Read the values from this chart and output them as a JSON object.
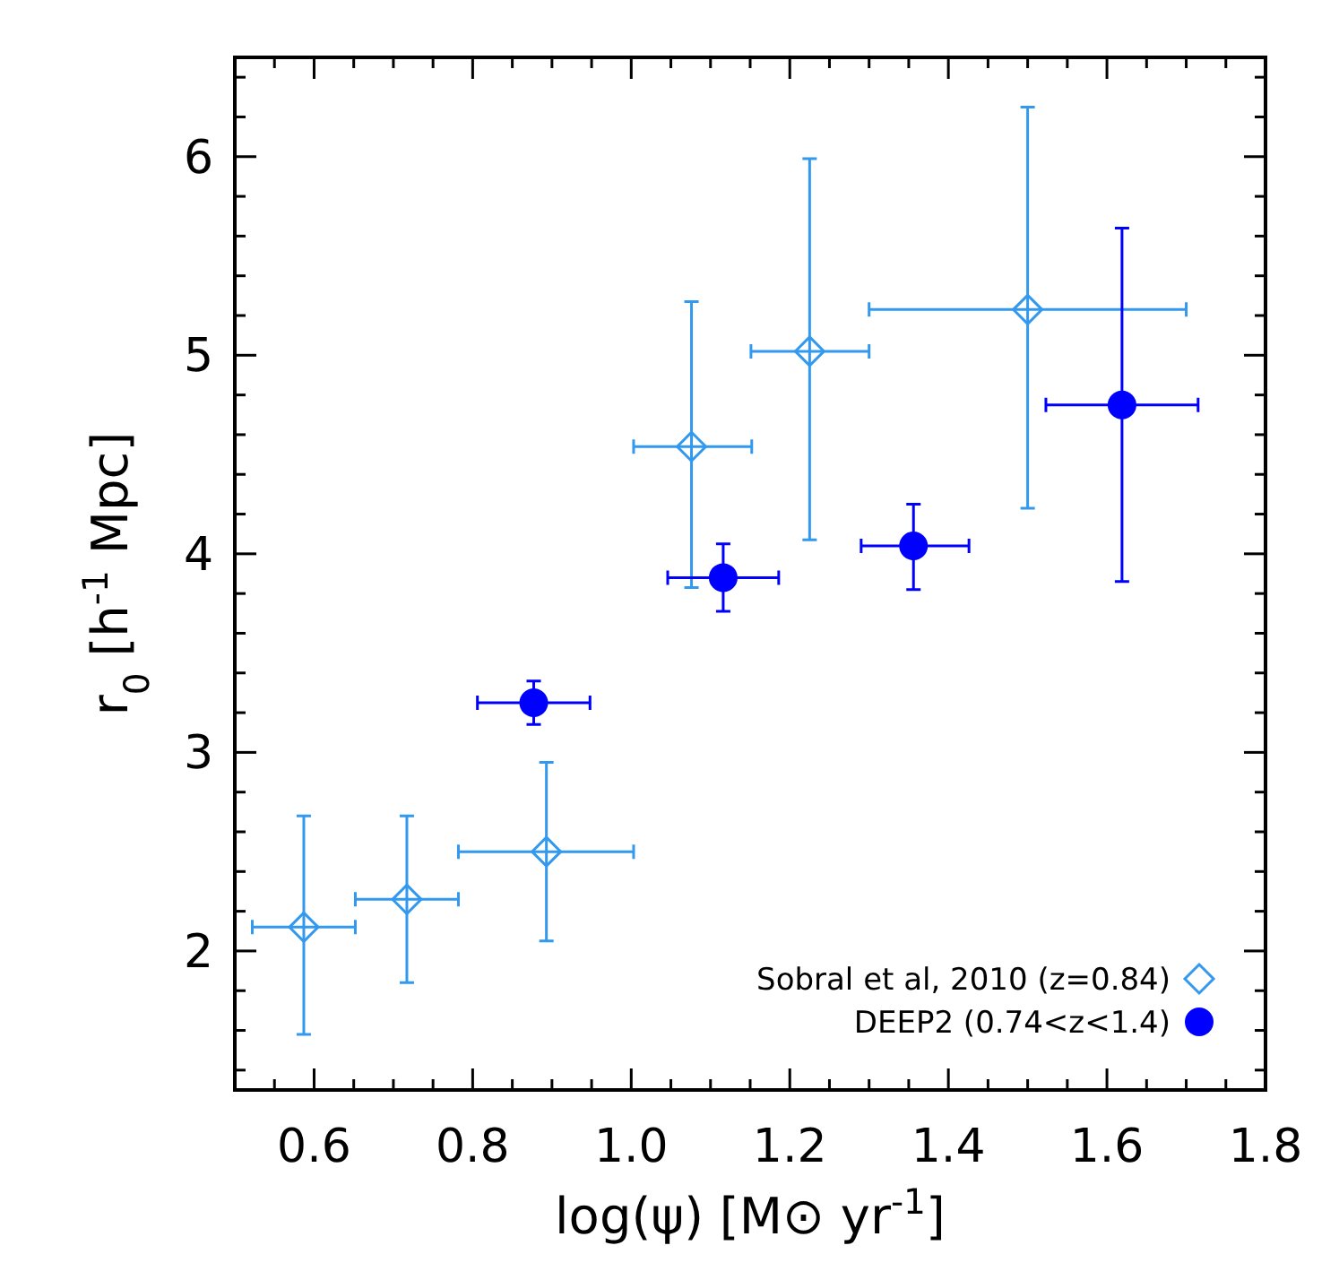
{
  "chart_data": {
    "type": "scatter",
    "xlabel": "log(ψ) [M⊙ yr$^{-1}$]",
    "ylabel": "r$_{0}$ [h$^{-1}$ Mpc]",
    "xlim": [
      0.5,
      1.8
    ],
    "ylim": [
      1.3,
      6.5
    ],
    "xticks": [
      {
        "value": 0.5,
        "label": null
      },
      {
        "value": 0.55,
        "label": null
      },
      0.6,
      {
        "value": 0.65,
        "label": null
      },
      {
        "value": 0.7,
        "label": null
      },
      {
        "value": 0.75,
        "label": null
      },
      0.8,
      {
        "value": 0.85,
        "label": null
      },
      {
        "value": 0.9,
        "label": null
      },
      {
        "value": 0.95,
        "label": null
      },
      {
        "value": 1,
        "label": "1.0"
      },
      {
        "value": 1.05,
        "label": null
      },
      {
        "value": 1.1,
        "label": null
      },
      {
        "value": 1.15,
        "label": null
      },
      1.2,
      {
        "value": 1.25,
        "label": null
      },
      {
        "value": 1.3,
        "label": null
      },
      {
        "value": 1.35,
        "label": null
      },
      1.4,
      {
        "value": 1.45,
        "label": null
      },
      {
        "value": 1.5,
        "label": null
      },
      {
        "value": 1.55,
        "label": null
      },
      1.6,
      {
        "value": 1.65,
        "label": null
      },
      {
        "value": 1.7,
        "label": null
      },
      {
        "value": 1.75,
        "label": null
      },
      1.8
    ],
    "yticks": [
      {
        "value": 1.4,
        "label": null
      },
      {
        "value": 1.6,
        "label": null
      },
      {
        "value": 1.8,
        "label": null
      },
      2,
      {
        "value": 2.2,
        "label": null
      },
      {
        "value": 2.4,
        "label": null
      },
      {
        "value": 2.6,
        "label": null
      },
      {
        "value": 2.8,
        "label": null
      },
      3,
      {
        "value": 3.2,
        "label": null
      },
      {
        "value": 3.4,
        "label": null
      },
      {
        "value": 3.6,
        "label": null
      },
      {
        "value": 3.8,
        "label": null
      },
      4,
      {
        "value": 4.2,
        "label": null
      },
      {
        "value": 4.4,
        "label": null
      },
      {
        "value": 4.6,
        "label": null
      },
      {
        "value": 4.8,
        "label": null
      },
      5,
      {
        "value": 5.2,
        "label": null
      },
      {
        "value": 5.4,
        "label": null
      },
      {
        "value": 5.6,
        "label": null
      },
      {
        "value": 5.8,
        "label": null
      },
      6,
      {
        "value": 6.2,
        "label": null
      },
      {
        "value": 6.4,
        "label": null
      }
    ],
    "legend": "bottom right",
    "grid": false,
    "series": [
      {
        "name": "Sobral et al, 2010 (z=0.84)",
        "color": "#3399ee",
        "marker": "diamond",
        "x": [
          0.587,
          0.717,
          0.893,
          1.076,
          1.225,
          1.5
        ],
        "values": [
          2.12,
          2.26,
          2.5,
          4.54,
          5.02,
          5.23
        ],
        "errors": [
          [
            1.58,
            2.68
          ],
          [
            1.84,
            2.68
          ],
          [
            2.05,
            2.95
          ],
          [
            3.83,
            5.27
          ],
          [
            4.07,
            5.99
          ],
          [
            4.23,
            6.25
          ]
        ],
        "xerrors": [
          [
            0.522,
            0.652
          ],
          [
            0.652,
            0.782
          ],
          [
            0.782,
            1.003
          ],
          [
            1.003,
            1.152
          ],
          [
            1.151,
            1.3
          ],
          [
            1.3,
            1.7
          ]
        ]
      },
      {
        "name": "DEEP2 (0.74<z<1.4)",
        "color": "#0000ff",
        "marker": "circle",
        "x": [
          0.877,
          1.116,
          1.356,
          1.619
        ],
        "values": [
          3.25,
          3.88,
          4.04,
          4.75
        ],
        "errors": [
          [
            3.14,
            3.36
          ],
          [
            3.71,
            4.05
          ],
          [
            3.82,
            4.25
          ],
          [
            3.86,
            5.64
          ]
        ],
        "xerrors": [
          [
            0.806,
            0.948
          ],
          [
            1.046,
            1.186
          ],
          [
            1.29,
            1.426
          ],
          [
            1.523,
            1.715
          ]
        ]
      }
    ]
  }
}
